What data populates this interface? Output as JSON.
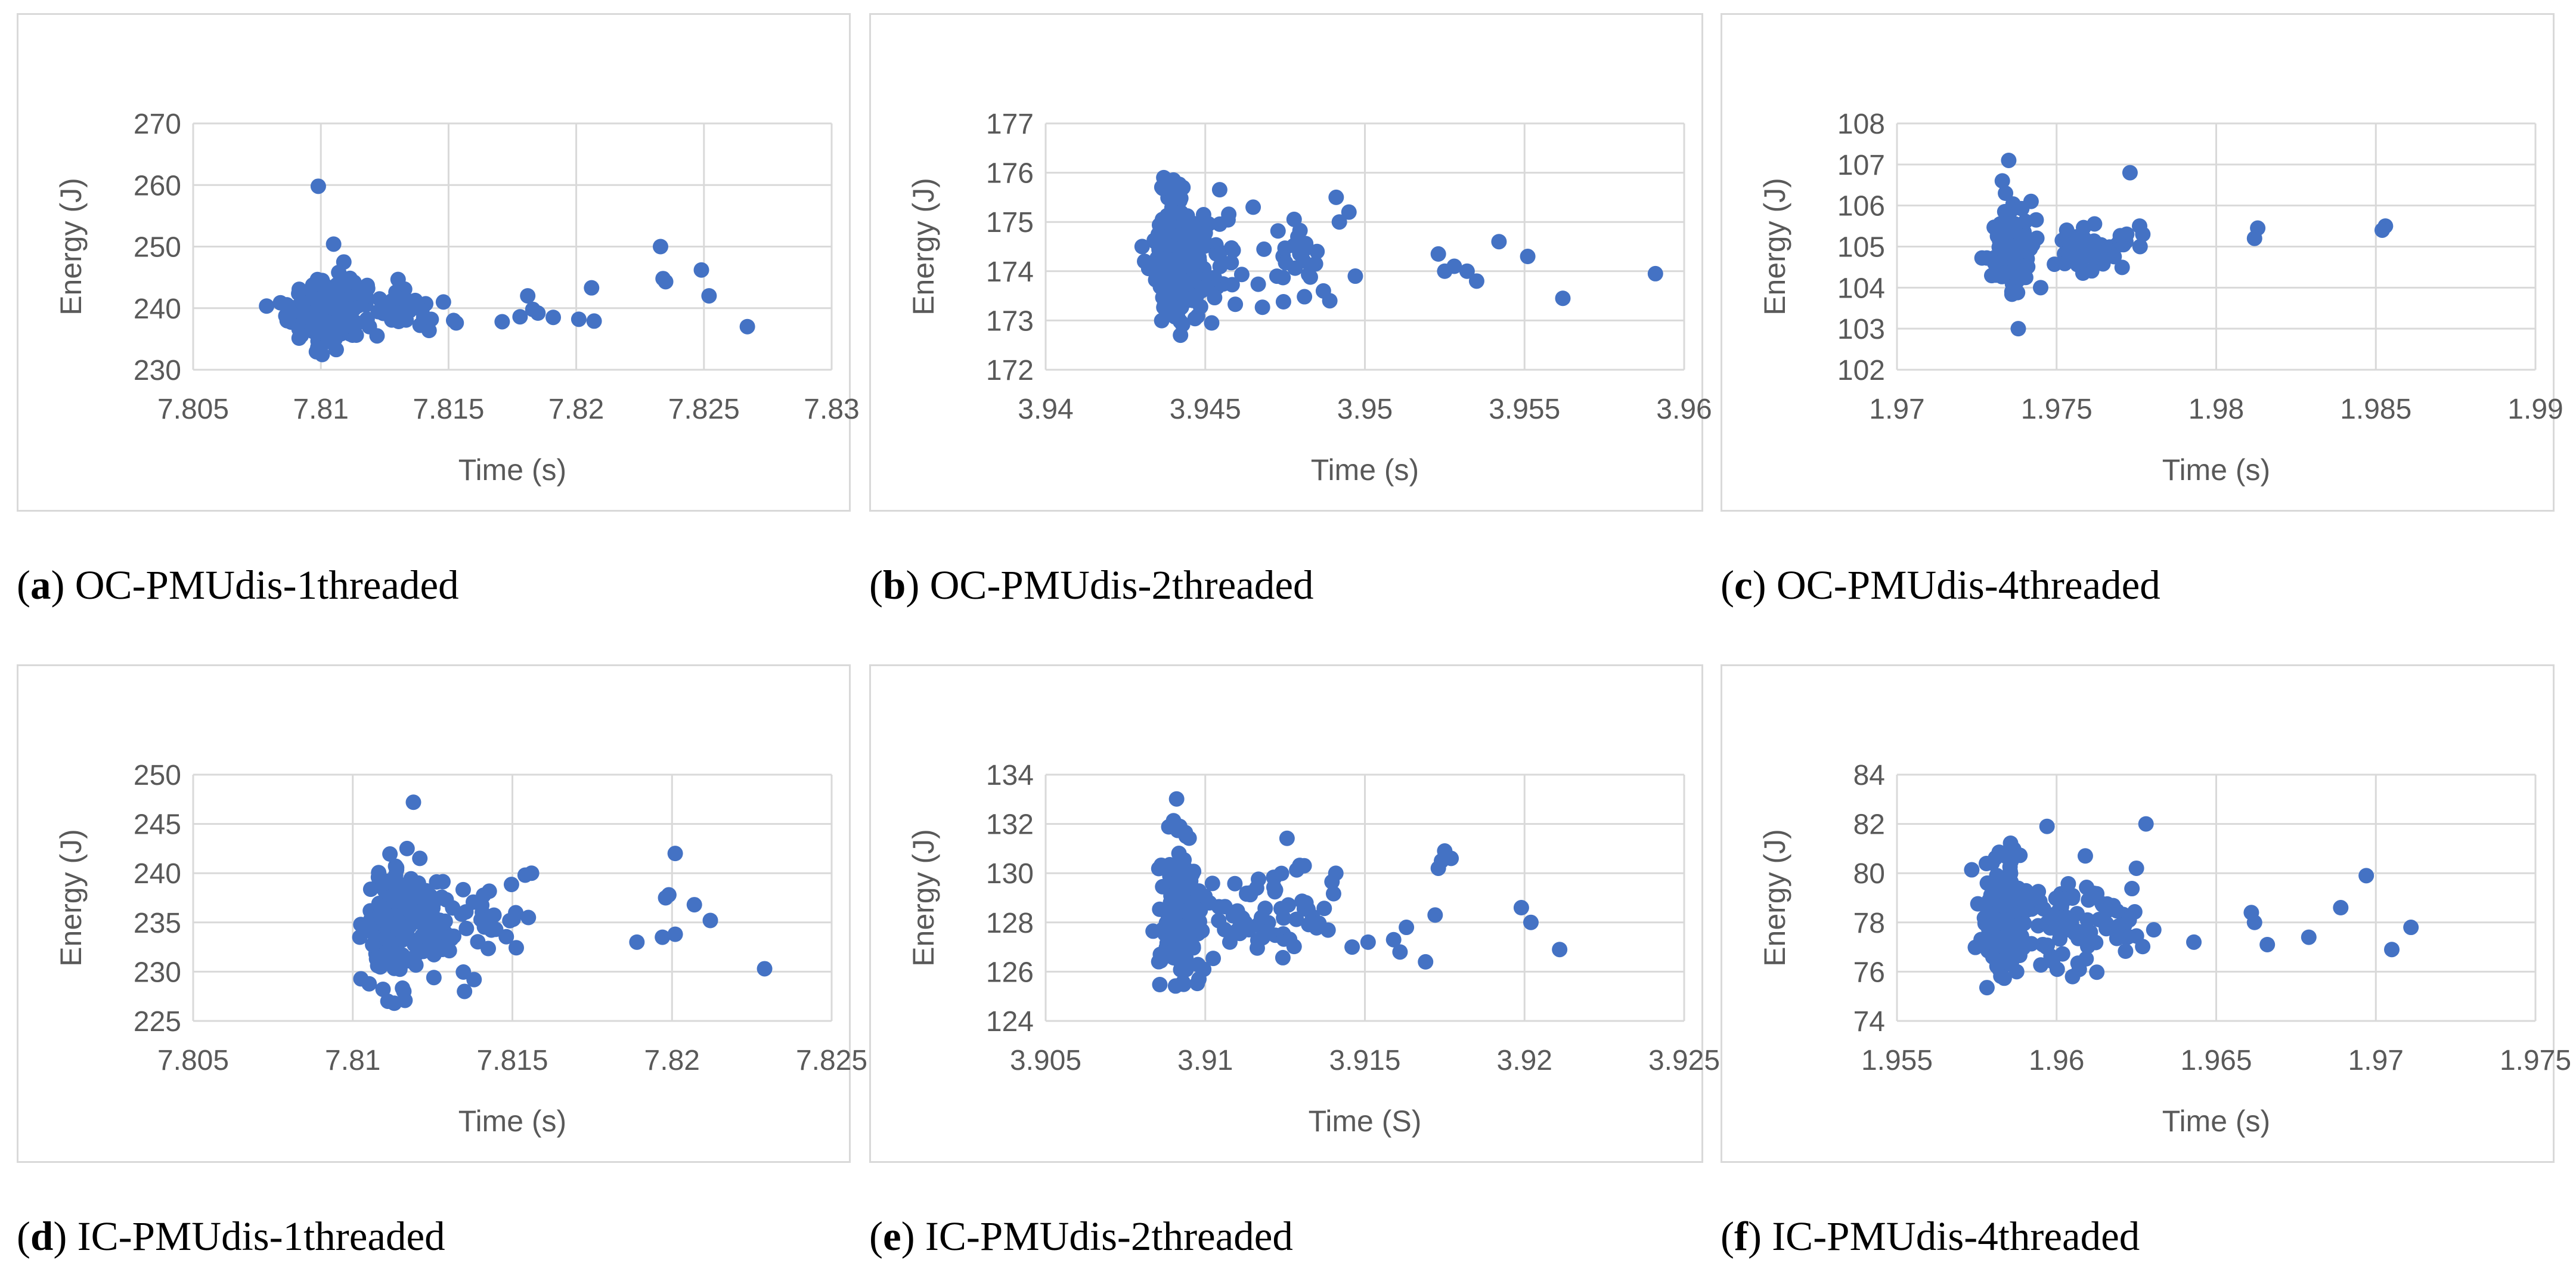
{
  "chart_data": [
    {
      "type": "scatter",
      "caption_letter": "a",
      "caption_text": "OC-PMUdis-1threaded",
      "xlabel": "Time (s)",
      "ylabel": "Energy (J)",
      "xlim": [
        7.805,
        7.83
      ],
      "ylim": [
        230,
        270
      ],
      "xticks": [
        7.805,
        7.81,
        7.815,
        7.82,
        7.825,
        7.83
      ],
      "yticks": [
        230,
        240,
        250,
        260,
        270
      ],
      "xtick_labels": [
        "7.805",
        "7.81",
        "7.815",
        "7.82",
        "7.825",
        "7.83"
      ],
      "ytick_labels": [
        "230",
        "240",
        "250",
        "260",
        "270"
      ],
      "clusters": [
        {
          "cx": 7.8098,
          "cy": 239.5,
          "sx": 0.00055,
          "sy": 2.3,
          "n": 170
        },
        {
          "cx": 7.8112,
          "cy": 240.2,
          "sx": 0.0005,
          "sy": 2.0,
          "n": 60
        },
        {
          "cx": 7.8133,
          "cy": 239.3,
          "sx": 0.0005,
          "sy": 1.8,
          "n": 26
        }
      ],
      "points": [
        [
          7.8099,
          259.8
        ],
        [
          7.8105,
          250.4
        ],
        [
          7.8109,
          247.5
        ],
        [
          7.8107,
          245.8
        ],
        [
          7.8113,
          244.2
        ],
        [
          7.8123,
          241.5
        ],
        [
          7.8148,
          241.0
        ],
        [
          7.8152,
          238.0
        ],
        [
          7.8153,
          237.6
        ],
        [
          7.8171,
          237.8
        ],
        [
          7.8178,
          238.6
        ],
        [
          7.8181,
          242.0
        ],
        [
          7.8183,
          239.8
        ],
        [
          7.8185,
          239.2
        ],
        [
          7.8191,
          238.5
        ],
        [
          7.8201,
          238.2
        ],
        [
          7.8206,
          243.3
        ],
        [
          7.8207,
          237.9
        ],
        [
          7.8233,
          250.0
        ],
        [
          7.8234,
          244.8
        ],
        [
          7.8235,
          244.3
        ],
        [
          7.8249,
          246.2
        ],
        [
          7.8252,
          242.0
        ],
        [
          7.8267,
          237.0
        ],
        [
          7.8119,
          237.0
        ],
        [
          7.8122,
          235.5
        ]
      ]
    },
    {
      "type": "scatter",
      "caption_letter": "b",
      "caption_text": "OC-PMUdis-2threaded",
      "xlabel": "Time (s)",
      "ylabel": "Energy (J)",
      "xlim": [
        3.94,
        3.96
      ],
      "ylim": [
        172,
        177
      ],
      "xticks": [
        3.94,
        3.945,
        3.95,
        3.955,
        3.96
      ],
      "yticks": [
        172,
        173,
        174,
        175,
        176,
        177
      ],
      "xtick_labels": [
        "3.94",
        "3.945",
        "3.95",
        "3.955",
        "3.96"
      ],
      "ytick_labels": [
        "172",
        "173",
        "174",
        "175",
        "176",
        "177"
      ],
      "clusters": [
        {
          "cx": 3.9441,
          "cy": 174.3,
          "sx": 0.00035,
          "sy": 0.6,
          "n": 210
        },
        {
          "cx": 3.9452,
          "cy": 174.3,
          "sx": 0.0006,
          "sy": 0.55,
          "n": 45
        },
        {
          "cx": 3.9478,
          "cy": 174.2,
          "sx": 0.0006,
          "sy": 0.45,
          "n": 22
        }
      ],
      "points": [
        [
          3.9437,
          175.9
        ],
        [
          3.9443,
          175.7
        ],
        [
          3.9452,
          172.95
        ],
        [
          3.9431,
          174.2
        ],
        [
          3.9465,
          175.3
        ],
        [
          3.9479,
          174.7
        ],
        [
          3.9485,
          174.4
        ],
        [
          3.9487,
          173.6
        ],
        [
          3.9489,
          173.4
        ],
        [
          3.9491,
          175.5
        ],
        [
          3.9492,
          175.0
        ],
        [
          3.9495,
          175.2
        ],
        [
          3.9497,
          173.9
        ],
        [
          3.9523,
          174.35
        ],
        [
          3.9525,
          174.0
        ],
        [
          3.9528,
          174.1
        ],
        [
          3.9532,
          174.0
        ],
        [
          3.9535,
          173.8
        ],
        [
          3.9542,
          174.6
        ],
        [
          3.9551,
          174.3
        ],
        [
          3.9562,
          173.45
        ],
        [
          3.9591,
          173.95
        ]
      ]
    },
    {
      "type": "scatter",
      "caption_letter": "c",
      "caption_text": "OC-PMUdis-4threaded",
      "xlabel": "Time (s)",
      "ylabel": "Energy (J)",
      "xlim": [
        1.97,
        1.99
      ],
      "ylim": [
        102,
        108
      ],
      "xticks": [
        1.97,
        1.975,
        1.98,
        1.985,
        1.99
      ],
      "yticks": [
        102,
        103,
        104,
        105,
        106,
        107,
        108
      ],
      "xtick_labels": [
        "1.97",
        "1.975",
        "1.98",
        "1.985",
        "1.99"
      ],
      "ytick_labels": [
        "102",
        "103",
        "104",
        "105",
        "106",
        "107",
        "108"
      ],
      "clusters": [
        {
          "cx": 1.9736,
          "cy": 104.85,
          "sx": 0.0003,
          "sy": 0.45,
          "n": 170
        },
        {
          "cx": 1.9759,
          "cy": 104.9,
          "sx": 0.0004,
          "sy": 0.25,
          "n": 45
        },
        {
          "cx": 1.9771,
          "cy": 105.1,
          "sx": 0.0002,
          "sy": 0.2,
          "n": 12
        }
      ],
      "points": [
        [
          1.9735,
          107.1
        ],
        [
          1.9733,
          106.6
        ],
        [
          1.9734,
          106.3
        ],
        [
          1.9738,
          103.0
        ],
        [
          1.9736,
          105.9
        ],
        [
          1.9742,
          106.1
        ],
        [
          1.9773,
          106.8
        ],
        [
          1.9776,
          105.5
        ],
        [
          1.9777,
          105.3
        ],
        [
          1.9813,
          105.45
        ],
        [
          1.9812,
          105.2
        ],
        [
          1.9853,
          105.5
        ],
        [
          1.9852,
          105.4
        ],
        [
          1.9736,
          103.9
        ],
        [
          1.9745,
          104.0
        ]
      ]
    },
    {
      "type": "scatter",
      "caption_letter": "d",
      "caption_text": "IC-PMUdis-1threaded",
      "xlabel": "Time (s)",
      "ylabel": "Energy (J)",
      "xlim": [
        7.805,
        7.825
      ],
      "ylim": [
        225,
        250
      ],
      "xticks": [
        7.805,
        7.81,
        7.815,
        7.82,
        7.825
      ],
      "yticks": [
        225,
        230,
        235,
        240,
        245,
        250
      ],
      "xtick_labels": [
        "7.805",
        "7.81",
        "7.815",
        "7.82",
        "7.825"
      ],
      "ytick_labels": [
        "225",
        "230",
        "235",
        "240",
        "245",
        "250"
      ],
      "clusters": [
        {
          "cx": 7.8112,
          "cy": 234.8,
          "sx": 0.0004,
          "sy": 3.0,
          "n": 130
        },
        {
          "cx": 7.8125,
          "cy": 235.0,
          "sx": 0.0005,
          "sy": 2.3,
          "n": 40
        },
        {
          "cx": 7.8143,
          "cy": 235.4,
          "sx": 0.0006,
          "sy": 2.0,
          "n": 22
        }
      ],
      "points": [
        [
          7.8119,
          247.2
        ],
        [
          7.8117,
          242.5
        ],
        [
          7.8121,
          241.5
        ],
        [
          7.8111,
          227.0
        ],
        [
          7.8113,
          226.8
        ],
        [
          7.8116,
          228.0
        ],
        [
          7.8135,
          228.0
        ],
        [
          7.8138,
          229.2
        ],
        [
          7.8154,
          239.8
        ],
        [
          7.8156,
          240.0
        ],
        [
          7.8155,
          235.5
        ],
        [
          7.8189,
          233.0
        ],
        [
          7.8197,
          233.5
        ],
        [
          7.8198,
          237.5
        ],
        [
          7.8199,
          237.8
        ],
        [
          7.8201,
          242.0
        ],
        [
          7.8201,
          233.8
        ],
        [
          7.8207,
          236.8
        ],
        [
          7.8212,
          235.2
        ],
        [
          7.8229,
          230.3
        ]
      ]
    },
    {
      "type": "scatter",
      "caption_letter": "e",
      "caption_text": "IC-PMUdis-2threaded",
      "xlabel": "Time (S)",
      "ylabel": "Energy (J)",
      "xlim": [
        3.905,
        3.925
      ],
      "ylim": [
        124,
        134
      ],
      "xticks": [
        3.905,
        3.91,
        3.915,
        3.92,
        3.925
      ],
      "yticks": [
        124,
        126,
        128,
        130,
        132,
        134
      ],
      "xtick_labels": [
        "3.905",
        "3.91",
        "3.915",
        "3.92",
        "3.925"
      ],
      "ytick_labels": [
        "124",
        "126",
        "128",
        "130",
        "132",
        "134"
      ],
      "clusters": [
        {
          "cx": 3.9092,
          "cy": 128.4,
          "sx": 0.0003,
          "sy": 1.35,
          "n": 200
        },
        {
          "cx": 3.9112,
          "cy": 128.4,
          "sx": 0.0007,
          "sy": 1.0,
          "n": 45
        },
        {
          "cx": 3.9134,
          "cy": 128.4,
          "sx": 0.0006,
          "sy": 1.0,
          "n": 25
        }
      ],
      "points": [
        [
          3.9092,
          131.9
        ],
        [
          3.9094,
          131.5
        ],
        [
          3.9098,
          125.7
        ],
        [
          3.9146,
          127.0
        ],
        [
          3.9151,
          127.2
        ],
        [
          3.9159,
          127.3
        ],
        [
          3.9161,
          126.8
        ],
        [
          3.9163,
          127.8
        ],
        [
          3.9169,
          126.4
        ],
        [
          3.9172,
          128.3
        ],
        [
          3.9173,
          130.2
        ],
        [
          3.9174,
          130.5
        ],
        [
          3.9175,
          130.9
        ],
        [
          3.9177,
          130.6
        ],
        [
          3.9199,
          128.6
        ],
        [
          3.9202,
          128.0
        ],
        [
          3.9211,
          126.9
        ]
      ]
    },
    {
      "type": "scatter",
      "caption_letter": "f",
      "caption_text": "IC-PMUdis-4threaded",
      "xlabel": "Time (s)",
      "ylabel": "Energy (J)",
      "xlim": [
        1.955,
        1.975
      ],
      "ylim": [
        74,
        84
      ],
      "xticks": [
        1.955,
        1.96,
        1.965,
        1.97,
        1.975
      ],
      "yticks": [
        74,
        76,
        78,
        80,
        82,
        84
      ],
      "xtick_labels": [
        "1.955",
        "1.96",
        "1.965",
        "1.97",
        "1.975"
      ],
      "ytick_labels": [
        "74",
        "76",
        "78",
        "80",
        "82",
        "84"
      ],
      "clusters": [
        {
          "cx": 1.9584,
          "cy": 78.0,
          "sx": 0.0003,
          "sy": 1.25,
          "n": 190
        },
        {
          "cx": 1.9601,
          "cy": 78.0,
          "sx": 0.0006,
          "sy": 1.0,
          "n": 60
        },
        {
          "cx": 1.9621,
          "cy": 78.1,
          "sx": 0.0004,
          "sy": 0.9,
          "n": 25
        }
      ],
      "points": [
        [
          1.9597,
          81.9
        ],
        [
          1.9609,
          80.7
        ],
        [
          1.9628,
          82.0
        ],
        [
          1.9625,
          80.2
        ],
        [
          1.9605,
          75.8
        ],
        [
          1.9643,
          77.2
        ],
        [
          1.9661,
          78.4
        ],
        [
          1.9662,
          78.0
        ],
        [
          1.9666,
          77.1
        ],
        [
          1.9679,
          77.4
        ],
        [
          1.9689,
          78.6
        ],
        [
          1.9697,
          79.9
        ],
        [
          1.9705,
          76.9
        ],
        [
          1.9711,
          77.8
        ]
      ]
    }
  ]
}
